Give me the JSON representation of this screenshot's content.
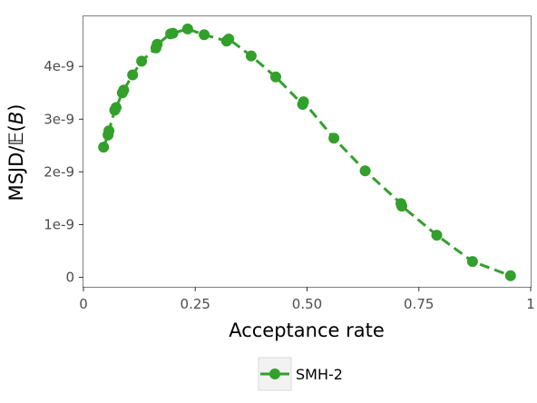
{
  "chart_data": {
    "type": "line",
    "title": "",
    "xlabel": "Acceptance rate",
    "ylabel_main": "MSJD/",
    "ylabel_e": "𝔼",
    "ylabel_open": "(",
    "ylabel_b": "B",
    "ylabel_close": ")",
    "xlim": [
      0,
      1
    ],
    "ylim": [
      -1.8e-10,
      4.95e-09
    ],
    "x_ticks": [
      {
        "value": 0,
        "label": "0"
      },
      {
        "value": 0.25,
        "label": "0.25"
      },
      {
        "value": 0.5,
        "label": "0.50"
      },
      {
        "value": 0.75,
        "label": "0.75"
      },
      {
        "value": 1,
        "label": "1"
      }
    ],
    "y_ticks": [
      {
        "value": 0,
        "label": "0"
      },
      {
        "value": 1e-09,
        "label": "1e-9"
      },
      {
        "value": 2e-09,
        "label": "2e-9"
      },
      {
        "value": 3e-09,
        "label": "3e-9"
      },
      {
        "value": 4e-09,
        "label": "4e-9"
      }
    ],
    "grid": false,
    "legend_position": "bottom",
    "series": [
      {
        "name": "SMH-2",
        "color": "#33a02c",
        "line_style": "dashed",
        "marker": "circle",
        "x": [
          0.045,
          0.055,
          0.057,
          0.07,
          0.073,
          0.087,
          0.09,
          0.11,
          0.13,
          0.162,
          0.165,
          0.195,
          0.2,
          0.233,
          0.27,
          0.32,
          0.325,
          0.375,
          0.43,
          0.49,
          0.492,
          0.56,
          0.63,
          0.71,
          0.712,
          0.79,
          0.87,
          0.955
        ],
        "y": [
          2.47e-09,
          2.7e-09,
          2.78e-09,
          3.17e-09,
          3.22e-09,
          3.5e-09,
          3.55e-09,
          3.84e-09,
          4.1e-09,
          4.35e-09,
          4.42e-09,
          4.62e-09,
          4.63e-09,
          4.71e-09,
          4.6e-09,
          4.48e-09,
          4.52e-09,
          4.2e-09,
          3.8e-09,
          3.28e-09,
          3.33e-09,
          2.64e-09,
          2.02e-09,
          1.4e-09,
          1.35e-09,
          8e-10,
          3e-10,
          3e-11
        ]
      }
    ]
  }
}
